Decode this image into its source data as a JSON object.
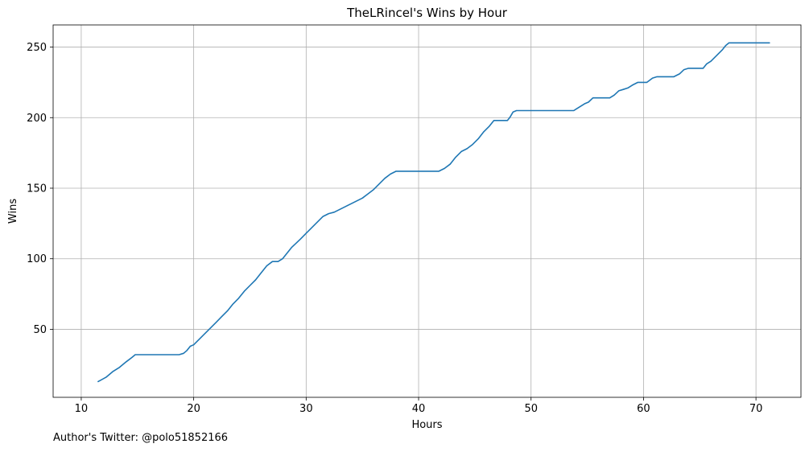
{
  "chart_data": {
    "type": "line",
    "title": "TheLRincel's Wins by Hour",
    "xlabel": "Hours",
    "ylabel": "Wins",
    "xlim": [
      7.5,
      74.0
    ],
    "ylim": [
      1.8,
      265.7
    ],
    "xticks": [
      10,
      20,
      30,
      40,
      50,
      60,
      70
    ],
    "yticks": [
      50,
      100,
      150,
      200,
      250
    ],
    "grid": true,
    "series_color": "#1f77b4",
    "series": [
      {
        "points": [
          [
            11.5,
            13
          ],
          [
            12.2,
            16
          ],
          [
            12.8,
            20
          ],
          [
            13.4,
            23
          ],
          [
            14.0,
            27
          ],
          [
            14.5,
            30
          ],
          [
            14.8,
            32
          ],
          [
            16.0,
            32
          ],
          [
            17.0,
            32
          ],
          [
            18.0,
            32
          ],
          [
            18.7,
            32
          ],
          [
            19.1,
            33
          ],
          [
            19.4,
            35
          ],
          [
            19.7,
            38
          ],
          [
            20.0,
            39
          ],
          [
            20.5,
            43
          ],
          [
            21.0,
            47
          ],
          [
            21.5,
            51
          ],
          [
            22.0,
            55
          ],
          [
            22.5,
            59
          ],
          [
            23.0,
            63
          ],
          [
            23.5,
            68
          ],
          [
            24.0,
            72
          ],
          [
            24.5,
            77
          ],
          [
            25.0,
            81
          ],
          [
            25.5,
            85
          ],
          [
            26.0,
            90
          ],
          [
            26.5,
            95
          ],
          [
            27.0,
            98
          ],
          [
            27.5,
            98
          ],
          [
            27.9,
            100
          ],
          [
            28.3,
            104
          ],
          [
            28.7,
            108
          ],
          [
            29.1,
            111
          ],
          [
            29.5,
            114
          ],
          [
            30.0,
            118
          ],
          [
            30.5,
            122
          ],
          [
            31.0,
            126
          ],
          [
            31.5,
            130
          ],
          [
            32.0,
            132
          ],
          [
            32.5,
            133
          ],
          [
            33.0,
            135
          ],
          [
            33.5,
            137
          ],
          [
            34.0,
            139
          ],
          [
            34.5,
            141
          ],
          [
            35.0,
            143
          ],
          [
            35.5,
            146
          ],
          [
            36.0,
            149
          ],
          [
            36.5,
            153
          ],
          [
            37.0,
            157
          ],
          [
            37.5,
            160
          ],
          [
            38.0,
            162
          ],
          [
            39.0,
            162
          ],
          [
            40.0,
            162
          ],
          [
            41.0,
            162
          ],
          [
            41.8,
            162
          ],
          [
            42.3,
            164
          ],
          [
            42.8,
            167
          ],
          [
            43.3,
            172
          ],
          [
            43.8,
            176
          ],
          [
            44.3,
            178
          ],
          [
            44.8,
            181
          ],
          [
            45.3,
            185
          ],
          [
            45.8,
            190
          ],
          [
            46.3,
            194
          ],
          [
            46.7,
            198
          ],
          [
            47.5,
            198
          ],
          [
            47.9,
            198
          ],
          [
            48.1,
            200
          ],
          [
            48.4,
            204
          ],
          [
            48.7,
            205
          ],
          [
            50.0,
            205
          ],
          [
            52.0,
            205
          ],
          [
            53.8,
            205
          ],
          [
            54.0,
            206
          ],
          [
            54.4,
            208
          ],
          [
            54.8,
            210
          ],
          [
            55.1,
            211
          ],
          [
            55.5,
            214
          ],
          [
            56.5,
            214
          ],
          [
            57.0,
            214
          ],
          [
            57.4,
            216
          ],
          [
            57.8,
            219
          ],
          [
            58.2,
            220
          ],
          [
            58.6,
            221
          ],
          [
            59.0,
            223
          ],
          [
            59.5,
            225
          ],
          [
            60.3,
            225
          ],
          [
            60.8,
            228
          ],
          [
            61.2,
            229
          ],
          [
            62.7,
            229
          ],
          [
            63.2,
            231
          ],
          [
            63.6,
            234
          ],
          [
            64.0,
            235
          ],
          [
            65.3,
            235
          ],
          [
            65.6,
            238
          ],
          [
            66.0,
            240
          ],
          [
            66.5,
            244
          ],
          [
            67.0,
            248
          ],
          [
            67.3,
            251
          ],
          [
            67.6,
            253
          ],
          [
            68.5,
            253
          ],
          [
            70.0,
            253
          ],
          [
            71.2,
            253
          ]
        ]
      }
    ]
  },
  "footer": {
    "credit": "Author's Twitter: @polo51852166"
  }
}
